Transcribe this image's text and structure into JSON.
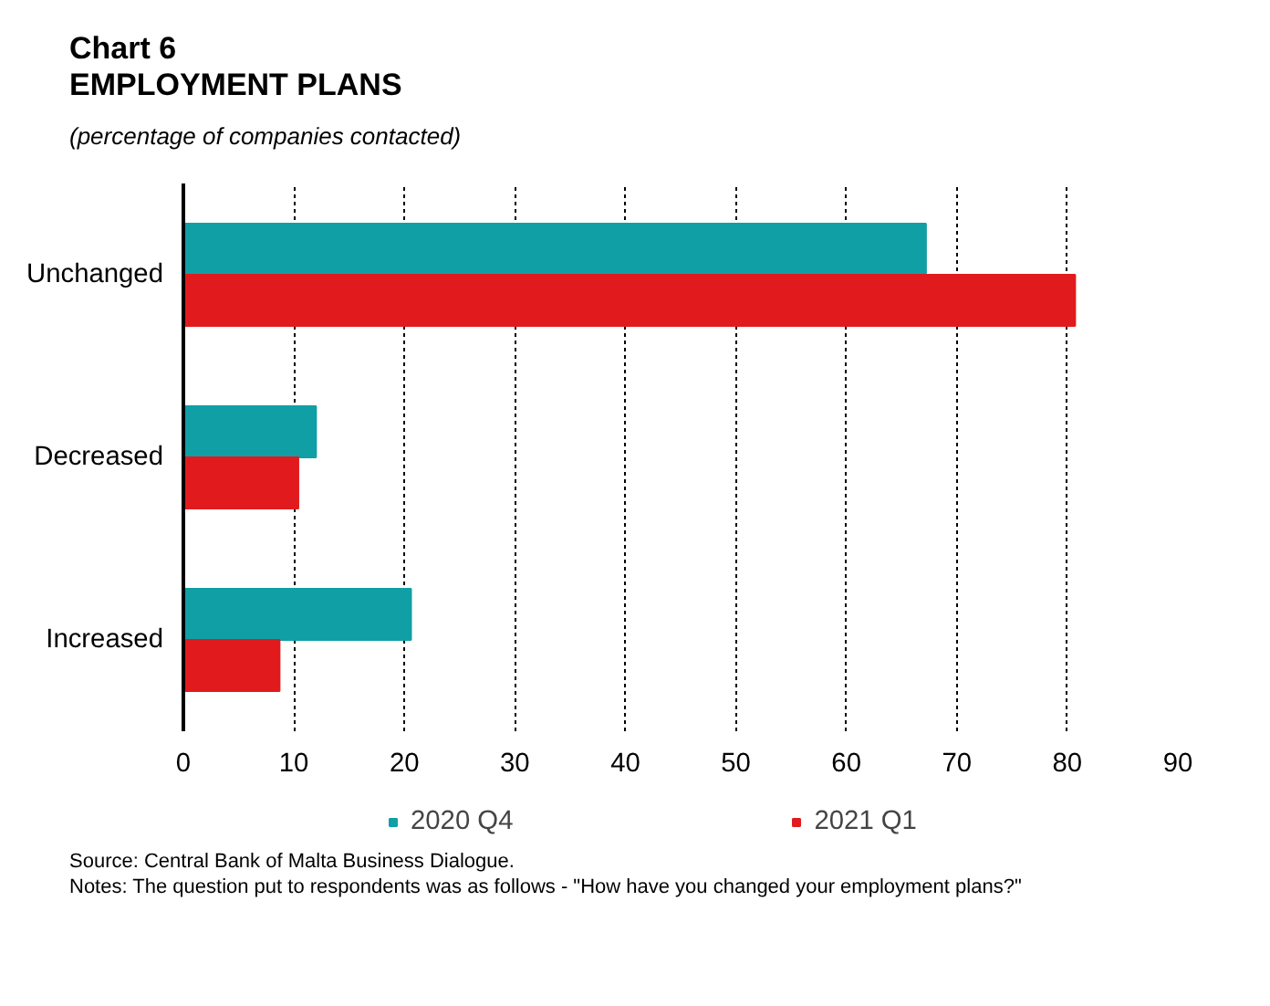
{
  "chart_data": {
    "type": "bar",
    "orientation": "horizontal",
    "title": "Chart 6\nEMPLOYMENT PLANS",
    "subtitle": "(percentage of companies contacted)",
    "categories": [
      "Unchanged",
      "Decreased",
      "Increased"
    ],
    "series": [
      {
        "name": "2020 Q4",
        "color": "#109fa5",
        "values": [
          67.2,
          12.0,
          20.6
        ]
      },
      {
        "name": "2021 Q1",
        "color": "#e11b1d",
        "values": [
          80.7,
          10.4,
          8.7
        ]
      }
    ],
    "xlim": [
      0,
      90
    ],
    "xticks": [
      0,
      10,
      20,
      30,
      40,
      50,
      60,
      70,
      80,
      90
    ],
    "grid": "x",
    "legend": "bottom",
    "annotations": [
      "Source: Central Bank of Malta Business Dialogue.",
      "Notes: The question put to respondents was as follows - \"How have you changed your employment plans?\""
    ]
  }
}
